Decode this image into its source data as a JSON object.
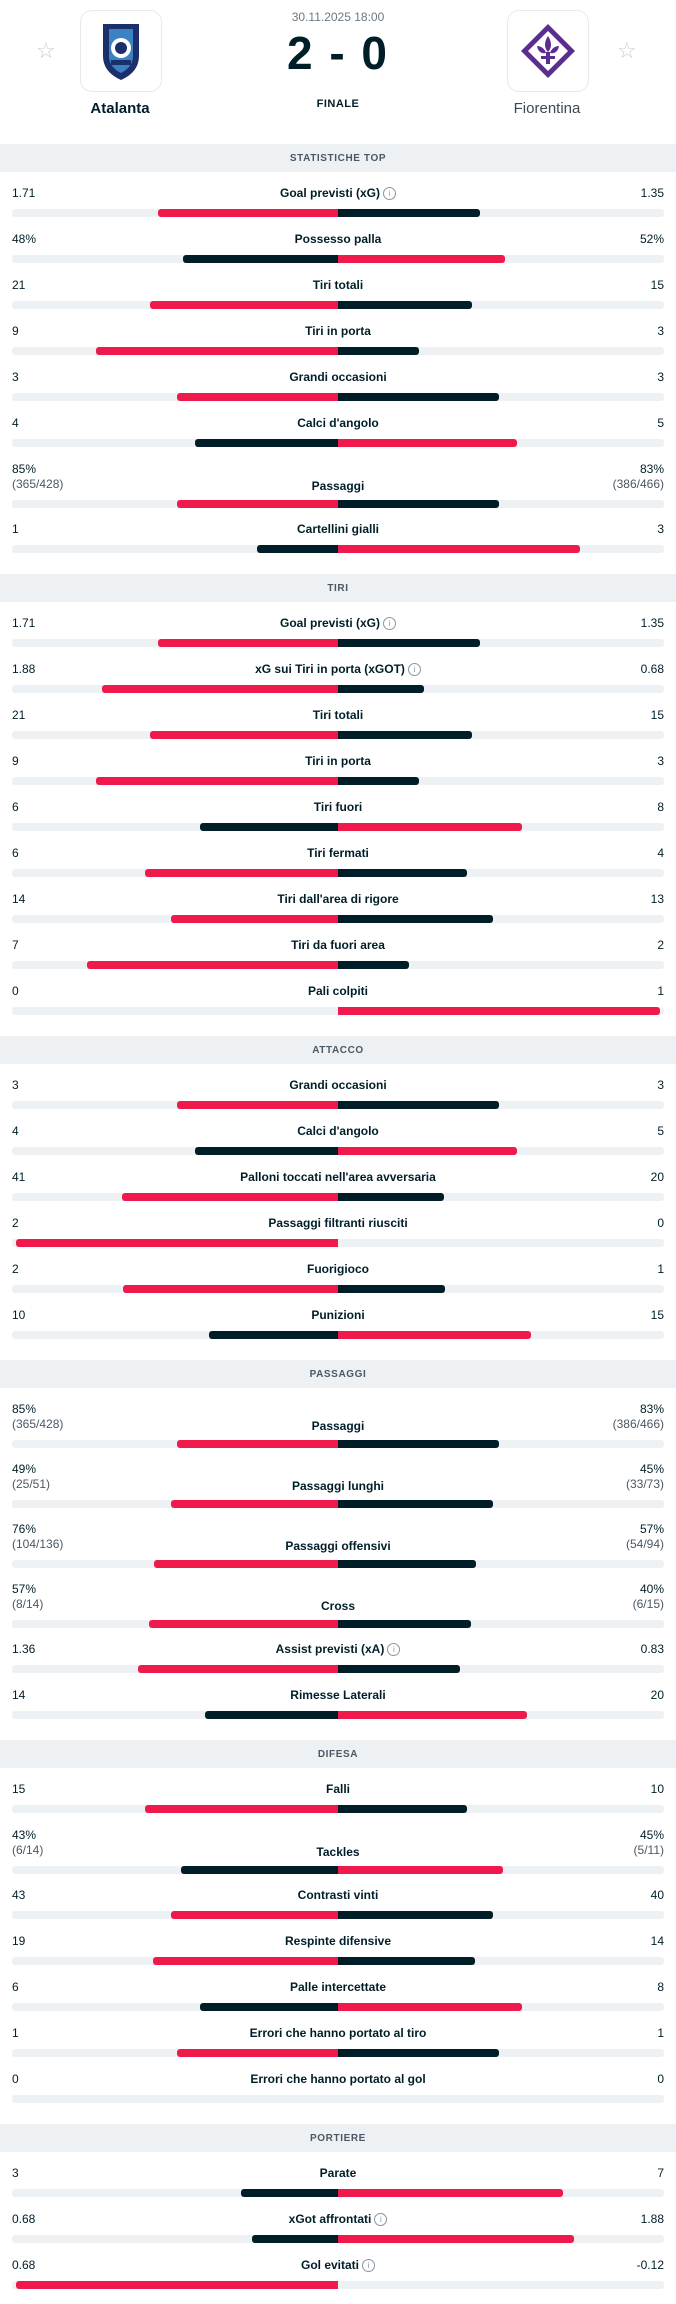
{
  "match": {
    "date": "30.11.2025 18:00",
    "score": "2 - 0",
    "status": "FINALE",
    "home_team": "Atalanta",
    "away_team": "Fiorentina",
    "favorite_icon": "star-icon"
  },
  "colors": {
    "better": "#f0194b",
    "worse": "#001e28",
    "track": "#eef1f4"
  },
  "sections": [
    {
      "title": "STATISTICHE TOP",
      "stats": [
        {
          "label": "Goal previsti (xG)",
          "info": true,
          "home": "1.71",
          "away": "1.35",
          "home_share": 0.559,
          "away_share": 0.441
        },
        {
          "label": "Possesso palla",
          "home": "48%",
          "away": "52%",
          "home_share": 0.48,
          "away_share": 0.52
        },
        {
          "label": "Tiri totali",
          "home": "21",
          "away": "15",
          "home_share": 0.583,
          "away_share": 0.417
        },
        {
          "label": "Tiri in porta",
          "home": "9",
          "away": "3",
          "home_share": 0.75,
          "away_share": 0.25
        },
        {
          "label": "Grandi occasioni",
          "home": "3",
          "away": "3",
          "home_share": 0.5,
          "away_share": 0.5
        },
        {
          "label": "Calci d'angolo",
          "home": "4",
          "away": "5",
          "home_share": 0.444,
          "away_share": 0.556
        },
        {
          "label": "Passaggi",
          "home": "85%",
          "home_sub": "(365/428)",
          "away": "83%",
          "away_sub": "(386/466)",
          "home_share": 0.5,
          "away_share": 0.5
        },
        {
          "label": "Cartellini gialli",
          "home": "1",
          "away": "3",
          "home_share": 0.25,
          "away_share": 0.75
        }
      ]
    },
    {
      "title": "TIRI",
      "stats": [
        {
          "label": "Goal previsti (xG)",
          "info": true,
          "home": "1.71",
          "away": "1.35",
          "home_share": 0.559,
          "away_share": 0.441
        },
        {
          "label": "xG sui Tiri in porta (xGOT)",
          "info": true,
          "home": "1.88",
          "away": "0.68",
          "home_share": 0.734,
          "away_share": 0.266
        },
        {
          "label": "Tiri totali",
          "home": "21",
          "away": "15",
          "home_share": 0.583,
          "away_share": 0.417
        },
        {
          "label": "Tiri in porta",
          "home": "9",
          "away": "3",
          "home_share": 0.75,
          "away_share": 0.25
        },
        {
          "label": "Tiri fuori",
          "home": "6",
          "away": "8",
          "home_share": 0.429,
          "away_share": 0.571
        },
        {
          "label": "Tiri fermati",
          "home": "6",
          "away": "4",
          "home_share": 0.6,
          "away_share": 0.4
        },
        {
          "label": "Tiri dall'area di rigore",
          "home": "14",
          "away": "13",
          "home_share": 0.519,
          "away_share": 0.481
        },
        {
          "label": "Tiri da fuori area",
          "home": "7",
          "away": "2",
          "home_share": 0.778,
          "away_share": 0.222
        },
        {
          "label": "Pali colpiti",
          "home": "0",
          "away": "1",
          "home_share": 0,
          "away_share": 1
        }
      ]
    },
    {
      "title": "ATTACCO",
      "stats": [
        {
          "label": "Grandi occasioni",
          "home": "3",
          "away": "3",
          "home_share": 0.5,
          "away_share": 0.5
        },
        {
          "label": "Calci d'angolo",
          "home": "4",
          "away": "5",
          "home_share": 0.444,
          "away_share": 0.556
        },
        {
          "label": "Palloni toccati nell'area avversaria",
          "home": "41",
          "away": "20",
          "home_share": 0.672,
          "away_share": 0.328
        },
        {
          "label": "Passaggi filtranti riusciti",
          "home": "2",
          "away": "0",
          "home_share": 1,
          "away_share": 0
        },
        {
          "label": "Fuorigioco",
          "home": "2",
          "away": "1",
          "home_share": 0.667,
          "away_share": 0.333
        },
        {
          "label": "Punizioni",
          "home": "10",
          "away": "15",
          "home_share": 0.4,
          "away_share": 0.6
        }
      ]
    },
    {
      "title": "PASSAGGI",
      "stats": [
        {
          "label": "Passaggi",
          "home": "85%",
          "home_sub": "(365/428)",
          "away": "83%",
          "away_sub": "(386/466)",
          "home_share": 0.5,
          "away_share": 0.5
        },
        {
          "label": "Passaggi lunghi",
          "home": "49%",
          "home_sub": "(25/51)",
          "away": "45%",
          "away_sub": "(33/73)",
          "home_share": 0.52,
          "away_share": 0.48
        },
        {
          "label": "Passaggi offensivi",
          "home": "76%",
          "home_sub": "(104/136)",
          "away": "57%",
          "away_sub": "(54/94)",
          "home_share": 0.571,
          "away_share": 0.429
        },
        {
          "label": "Cross",
          "home": "57%",
          "home_sub": "(8/14)",
          "away": "40%",
          "away_sub": "(6/15)",
          "home_share": 0.588,
          "away_share": 0.412
        },
        {
          "label": "Assist previsti (xA)",
          "info": true,
          "home": "1.36",
          "away": "0.83",
          "home_share": 0.621,
          "away_share": 0.379
        },
        {
          "label": "Rimesse Laterali",
          "home": "14",
          "away": "20",
          "home_share": 0.412,
          "away_share": 0.588
        }
      ]
    },
    {
      "title": "DIFESA",
      "stats": [
        {
          "label": "Falli",
          "home": "15",
          "away": "10",
          "home_share": 0.6,
          "away_share": 0.4
        },
        {
          "label": "Tackles",
          "home": "43%",
          "home_sub": "(6/14)",
          "away": "45%",
          "away_sub": "(5/11)",
          "home_share": 0.489,
          "away_share": 0.511
        },
        {
          "label": "Contrasti vinti",
          "home": "43",
          "away": "40",
          "home_share": 0.518,
          "away_share": 0.482
        },
        {
          "label": "Respinte difensive",
          "home": "19",
          "away": "14",
          "home_share": 0.576,
          "away_share": 0.424
        },
        {
          "label": "Palle intercettate",
          "home": "6",
          "away": "8",
          "home_share": 0.429,
          "away_share": 0.571
        },
        {
          "label": "Errori che hanno portato al tiro",
          "home": "1",
          "away": "1",
          "home_share": 0.5,
          "away_share": 0.5
        },
        {
          "label": "Errori che hanno portato al gol",
          "home": "0",
          "away": "0",
          "home_share": 0,
          "away_share": 0
        }
      ]
    },
    {
      "title": "PORTIERE",
      "stats": [
        {
          "label": "Parate",
          "home": "3",
          "away": "7",
          "home_share": 0.3,
          "away_share": 0.7
        },
        {
          "label": "xGot affrontati",
          "info": true,
          "home": "0.68",
          "away": "1.88",
          "home_share": 0.266,
          "away_share": 0.734
        },
        {
          "label": "Gol evitati",
          "info": true,
          "home": "0.68",
          "away": "-0.12",
          "home_share": 1,
          "away_share": 0
        }
      ]
    }
  ]
}
